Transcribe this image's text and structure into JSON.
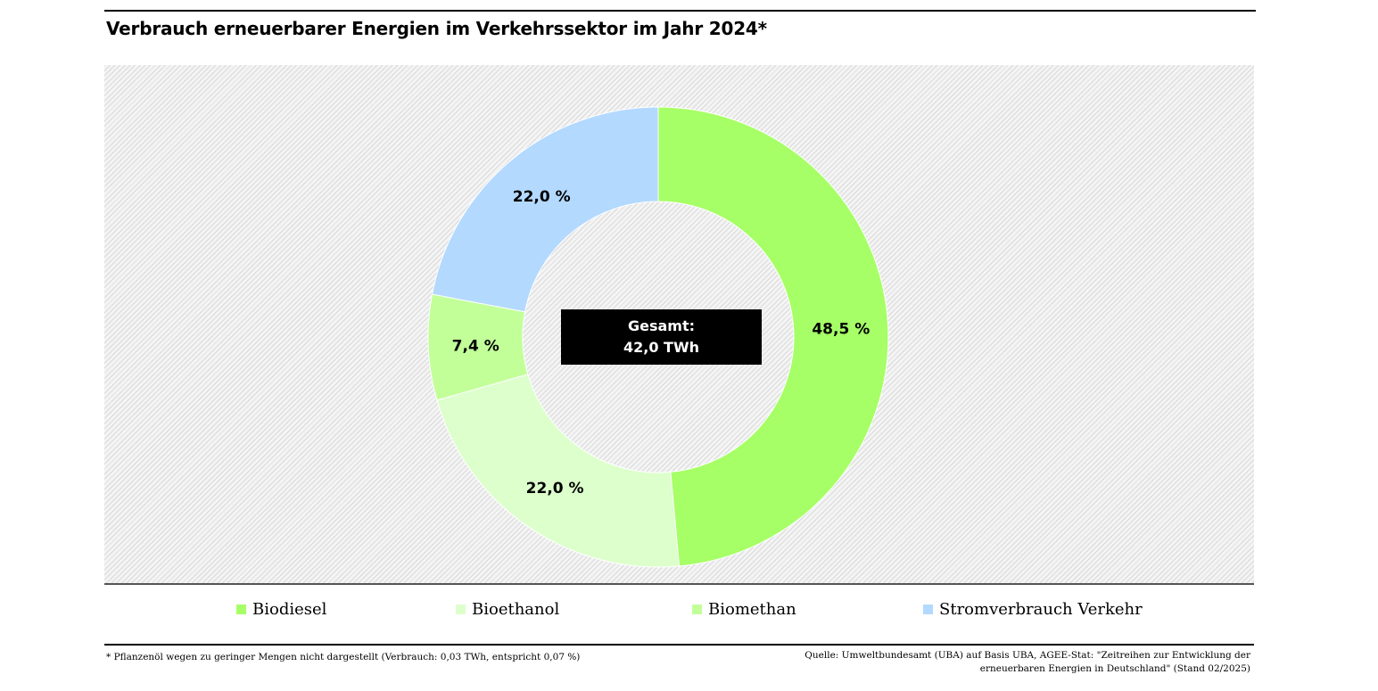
{
  "title": "Verbrauch erneuerbarer Energien im Verkehrssektor im Jahr 2024*",
  "center_label": {
    "line1": "Gesamt:",
    "line2": "42,0 TWh"
  },
  "chart_data": {
    "type": "pie",
    "title": "Verbrauch erneuerbarer Energien im Verkehrssektor im Jahr 2024*",
    "total": "42,0 TWh",
    "series": [
      {
        "name": "Biodiesel",
        "value": 48.5,
        "label": "48,5 %",
        "color": "#a6ff66"
      },
      {
        "name": "Bioethanol",
        "value": 22.0,
        "label": "22,0 %",
        "color": "#dcffcc"
      },
      {
        "name": "Biomethan",
        "value": 7.4,
        "label": "7,4 %",
        "color": "#c2ff99"
      },
      {
        "name": "Stromverbrauch Verkehr",
        "value": 22.0,
        "label": "22,0 %",
        "color": "#b3d9ff"
      }
    ],
    "donut": true,
    "legend_position": "bottom"
  },
  "legend": [
    {
      "label": "Biodiesel",
      "color": "#a6ff66"
    },
    {
      "label": "Bioethanol",
      "color": "#dcffcc"
    },
    {
      "label": "Biomethan",
      "color": "#c2ff99"
    },
    {
      "label": "Stromverbrauch Verkehr",
      "color": "#b3d9ff"
    }
  ],
  "footnote": "* Pflanzenöl wegen zu geringer Mengen nicht dargestellt (Verbrauch: 0,03 TWh, entspricht 0,07 %)",
  "source": {
    "line1": "Quelle: Umweltbundesamt (UBA) auf Basis UBA, AGEE-Stat: \"Zeitreihen zur Entwicklung der",
    "line2": "erneuerbaren Energien in Deutschland\" (Stand 02/2025)"
  }
}
